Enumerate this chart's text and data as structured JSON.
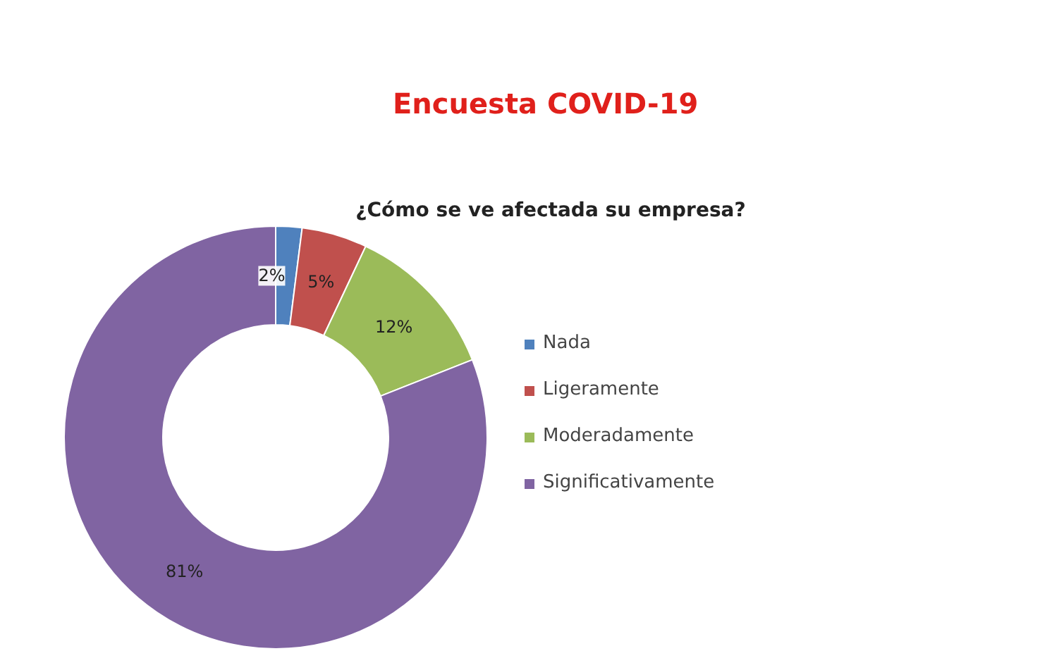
{
  "chart_data": {
    "type": "donut",
    "title": "Encuesta COVID-19",
    "subtitle": "¿Cómo se ve afectada su empresa?",
    "categories": [
      "Nada",
      "Ligeramente",
      "Moderadamente",
      "Significativamente"
    ],
    "values": [
      2,
      5,
      12,
      81
    ],
    "colors": [
      "#4f81bd",
      "#c0504d",
      "#9bbb59",
      "#8064a2"
    ],
    "value_labels": [
      "2%",
      "5%",
      "12%",
      "81%"
    ],
    "legend": "right"
  }
}
